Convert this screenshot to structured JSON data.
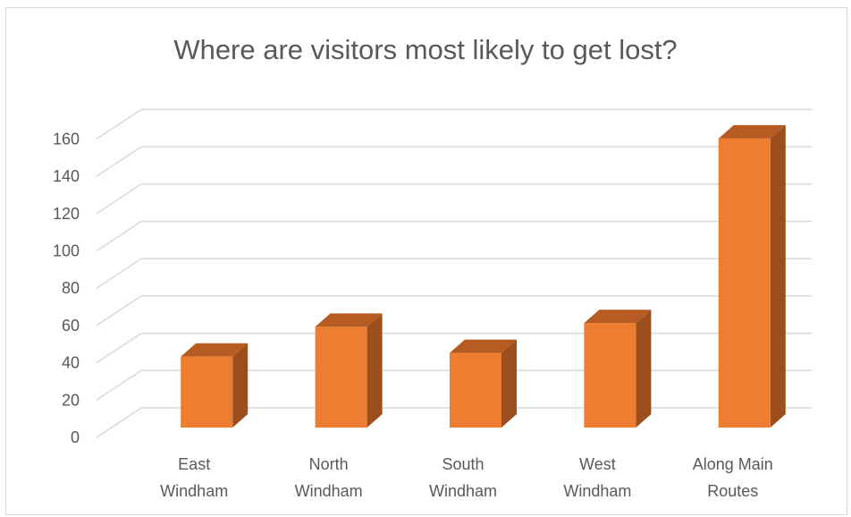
{
  "chart_data": {
    "type": "bar",
    "title": "Where are visitors most likely to get lost?",
    "categories": [
      [
        "East",
        "Windham"
      ],
      [
        "North",
        "Windham"
      ],
      [
        "South",
        "Windham"
      ],
      [
        "West",
        "Windham"
      ],
      [
        "Along Main",
        "Routes"
      ]
    ],
    "values": [
      38,
      54,
      40,
      56,
      155
    ],
    "yticks": [
      0,
      20,
      40,
      60,
      80,
      100,
      120,
      140,
      160
    ],
    "ylim": [
      0,
      160
    ],
    "grid": true,
    "legend": "none",
    "style": "3d-column",
    "colors": {
      "front": "#ed7d31",
      "side": "#9c4f1c",
      "top": "#b65b21",
      "grid": "#d9d9d9"
    }
  }
}
